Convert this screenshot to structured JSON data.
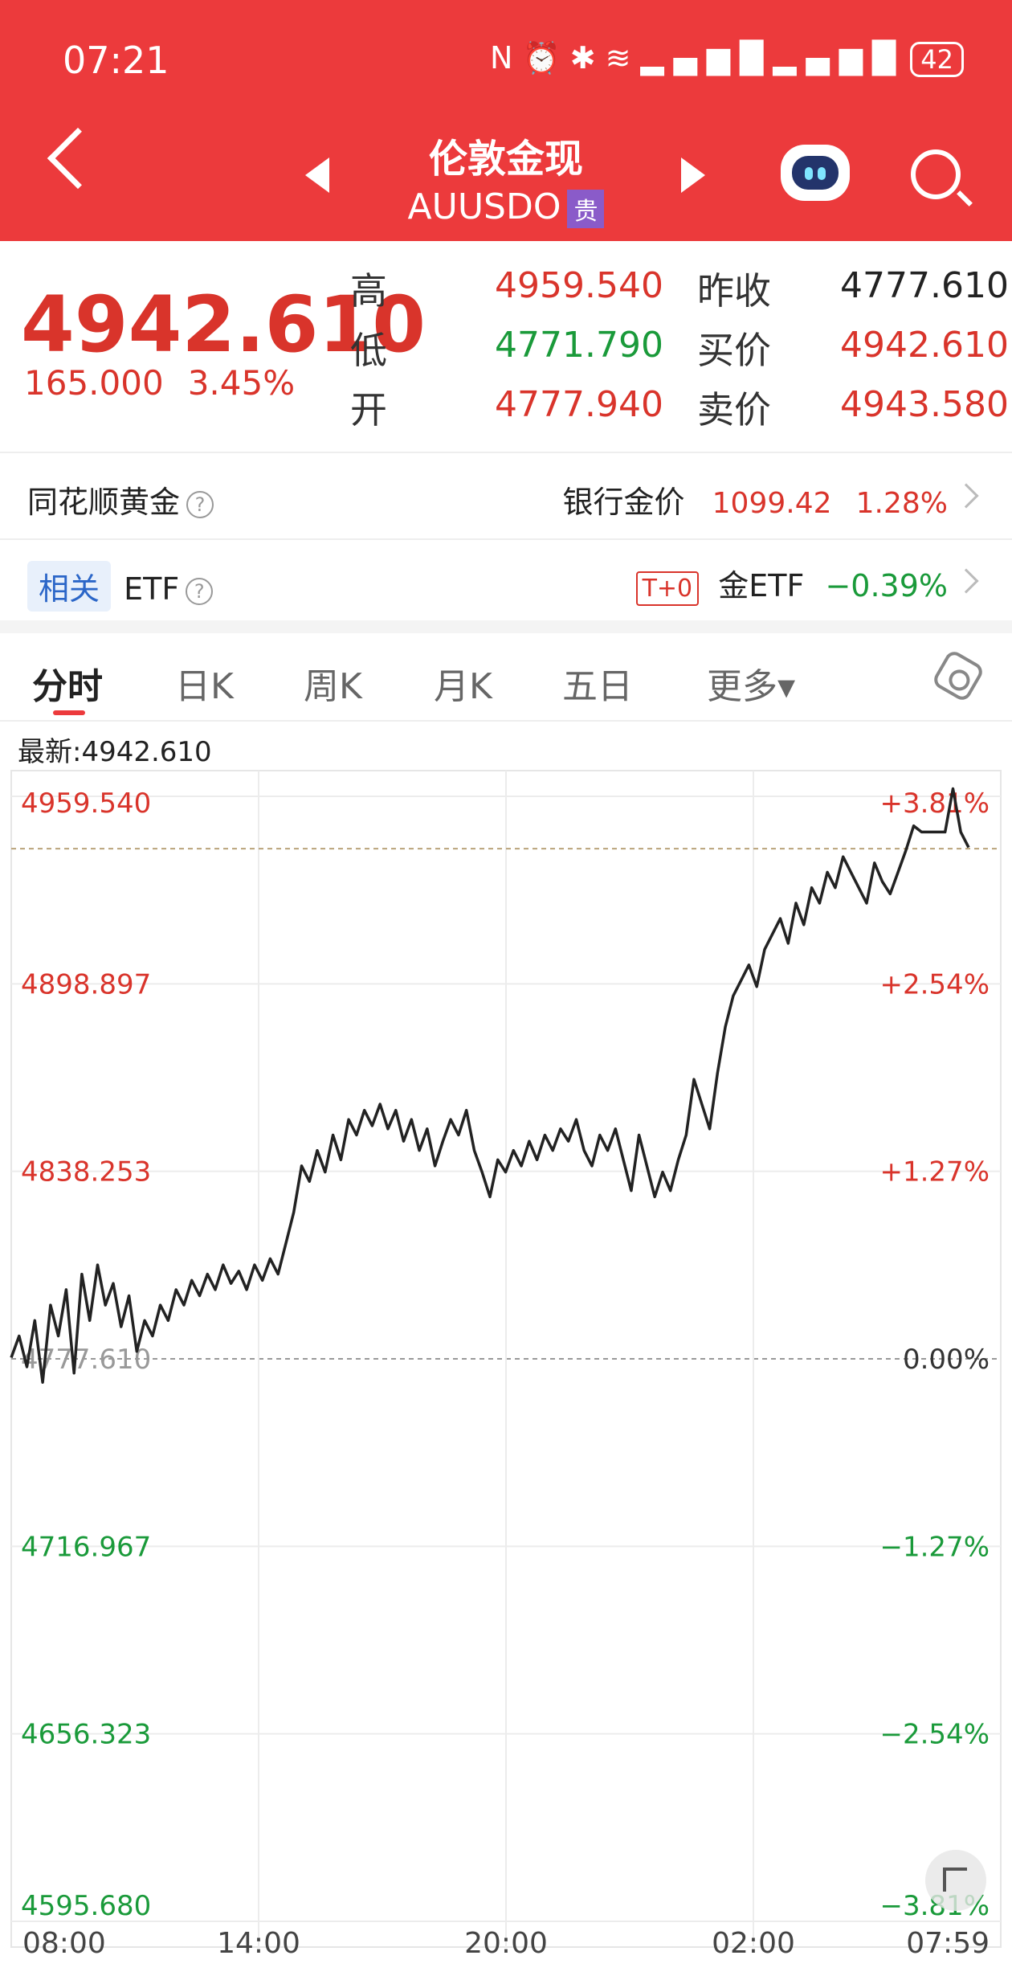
{
  "status_bar": {
    "time": "07:21",
    "icons": [
      "nfc-icon",
      "alarm-icon",
      "bluetooth-icon",
      "wifi-icon",
      "signal-icon",
      "signal-icon"
    ],
    "battery": "42"
  },
  "header": {
    "title": "伦敦金现",
    "code": "AUUSDO",
    "badge": "贵"
  },
  "quote": {
    "last": "4942.610",
    "change": "165.000",
    "change_pct": "3.45%",
    "high_label": "高",
    "high": "4959.540",
    "low_label": "低",
    "low": "4771.790",
    "open_label": "开",
    "open": "4777.940",
    "prev_close_label": "昨收",
    "prev_close": "4777.610",
    "bid_label": "买价",
    "bid": "4942.610",
    "ask_label": "卖价",
    "ask": "4943.580"
  },
  "gold_row": {
    "label": "同花顺黄金",
    "bank_label": "银行金价",
    "bank_price": "1099.42",
    "bank_pct": "1.28%"
  },
  "etf_row": {
    "tag": "相关",
    "label": "ETF",
    "t0": "T+0",
    "etf_name": "金ETF",
    "etf_pct": "−0.39%"
  },
  "tabs": [
    "分时",
    "日K",
    "周K",
    "月K",
    "五日",
    "更多▾"
  ],
  "latest_label": "最新:4942.610",
  "colors": {
    "header": "#ec3a3c",
    "up": "#d9342b",
    "down": "#1a9a3a"
  },
  "chart_data": {
    "type": "line",
    "prev_close": 4777.61,
    "y_ticks": [
      {
        "price": "4959.540",
        "pct": "+3.81%",
        "value": 4959.54
      },
      {
        "price": "4898.897",
        "pct": "+2.54%",
        "value": 4898.897
      },
      {
        "price": "4838.253",
        "pct": "+1.27%",
        "value": 4838.253
      },
      {
        "price": "4777.610",
        "pct": "0.00%",
        "value": 4777.61
      },
      {
        "price": "4716.967",
        "pct": "−1.27%",
        "value": 4716.967
      },
      {
        "price": "4656.323",
        "pct": "−2.54%",
        "value": 4656.323
      },
      {
        "price": "4595.680",
        "pct": "−3.81%",
        "value": 4595.68
      }
    ],
    "x_ticks": [
      "08:00",
      "14:00",
      "20:00",
      "02:00",
      "07:59"
    ],
    "ylim": [
      4595.68,
      4959.54
    ],
    "series": [
      {
        "values": [
          4778,
          4785,
          4775,
          4790,
          4770,
          4795,
          4785,
          4800,
          4773,
          4805,
          4790,
          4808,
          4795,
          4802,
          4788,
          4798,
          4780,
          4790,
          4785,
          4795,
          4790,
          4800,
          4795,
          4803,
          4798,
          4805,
          4800,
          4808,
          4802,
          4806,
          4800,
          4808,
          4803,
          4810,
          4805,
          4815,
          4825,
          4840,
          4835,
          4845,
          4838,
          4850,
          4842,
          4855,
          4850,
          4858,
          4853,
          4860,
          4852,
          4858,
          4848,
          4855,
          4845,
          4852,
          4840,
          4848,
          4855,
          4850,
          4858,
          4845,
          4838,
          4830,
          4842,
          4838,
          4845,
          4840,
          4848,
          4842,
          4850,
          4845,
          4852,
          4848,
          4855,
          4845,
          4840,
          4850,
          4845,
          4852,
          4842,
          4832,
          4850,
          4840,
          4830,
          4838,
          4832,
          4842,
          4850,
          4868,
          4860,
          4852,
          4870,
          4885,
          4895,
          4900,
          4905,
          4898,
          4910,
          4915,
          4920,
          4912,
          4925,
          4918,
          4930,
          4925,
          4935,
          4930,
          4940,
          4935,
          4930,
          4925,
          4938,
          4932,
          4928,
          4935,
          4942,
          4950,
          4948,
          4948,
          4948,
          4948,
          4962,
          4948,
          4943
        ]
      }
    ]
  }
}
